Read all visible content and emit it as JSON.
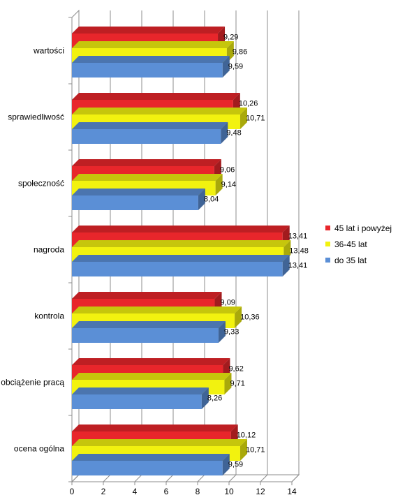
{
  "chart_data": {
    "type": "bar",
    "orientation": "horizontal",
    "style": "3d",
    "categories": [
      "wartości",
      "sprawiedliwość",
      "społeczność",
      "nagroda",
      "kontrola",
      "obciążenie pracą",
      "ocena ogólna"
    ],
    "series": [
      {
        "name": "45 lat i powyżej",
        "color": "#e8262b",
        "values": [
          9.29,
          10.26,
          9.06,
          13.41,
          9.09,
          9.62,
          10.12
        ],
        "labels": [
          "9,29",
          "10,26",
          "9,06",
          "13,41",
          "9,09",
          "9,62",
          "10,12"
        ]
      },
      {
        "name": "36-45 lat",
        "color": "#f2f20f",
        "values": [
          9.86,
          10.71,
          9.14,
          13.48,
          10.36,
          9.71,
          10.71
        ],
        "labels": [
          "9,86",
          "10,71",
          "9,14",
          "13,48",
          "10,36",
          "9,71",
          "10,71"
        ]
      },
      {
        "name": "do 35 lat",
        "color": "#5b8fd6",
        "values": [
          9.59,
          9.48,
          8.04,
          13.41,
          9.33,
          8.26,
          9.59
        ],
        "labels": [
          "9,59",
          "9,48",
          "8,04",
          "13,41",
          "9,33",
          "8,26",
          "9,59"
        ]
      }
    ],
    "xticks": [
      "0",
      "2",
      "4",
      "6",
      "8",
      "10",
      "12",
      "14"
    ],
    "xlim": [
      0,
      14
    ],
    "grid": true,
    "legend_position": "right"
  }
}
